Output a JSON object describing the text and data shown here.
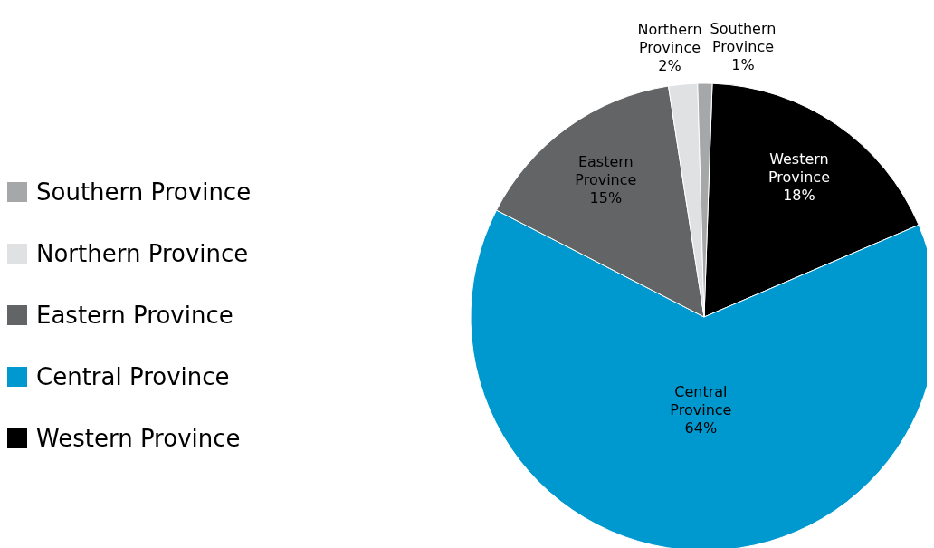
{
  "chart_data": {
    "type": "pie",
    "categories": [
      "Western Province",
      "Central Province",
      "Eastern Province",
      "Northern Province",
      "Southern Province"
    ],
    "values": [
      18,
      64,
      15,
      2,
      1
    ],
    "colors": [
      "#000000",
      "#0099cf",
      "#636466",
      "#e0e1e3",
      "#a6a7a9"
    ],
    "value_labels": [
      "18%",
      "64%",
      "15%",
      "2%",
      "1%"
    ],
    "legend": "left"
  }
}
